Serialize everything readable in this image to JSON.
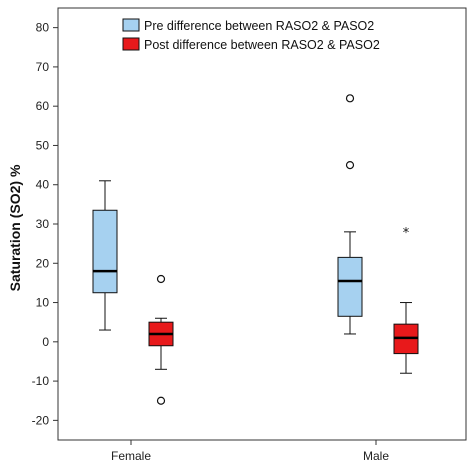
{
  "chart_data": {
    "type": "boxplot",
    "ylabel": "Saturation (SO2) %",
    "xlabel": "",
    "ylim": [
      -25,
      85
    ],
    "yticks": [
      80,
      70,
      60,
      50,
      40,
      30,
      20,
      10,
      0,
      -10,
      -20
    ],
    "categories": [
      "Female",
      "Male"
    ],
    "legend_placement": "top-center",
    "grid": false,
    "series": [
      {
        "name": "Pre difference between RASO2 & PASO2",
        "color": "#a6d1f0",
        "boxes": [
          {
            "category": "Female",
            "whisker_low": 3,
            "q1": 12.5,
            "median": 18,
            "q3": 33.5,
            "whisker_high": 41,
            "outliers": [],
            "extremes": []
          },
          {
            "category": "Male",
            "whisker_low": 2,
            "q1": 6.5,
            "median": 15.5,
            "q3": 21.5,
            "whisker_high": 28,
            "outliers": [
              45,
              62
            ],
            "extremes": []
          }
        ]
      },
      {
        "name": "Post difference between RASO2 & PASO2",
        "color": "#e8191b",
        "boxes": [
          {
            "category": "Female",
            "whisker_low": -7,
            "q1": -1,
            "median": 2,
            "q3": 5,
            "whisker_high": 6,
            "outliers": [
              16,
              -15
            ],
            "extremes": []
          },
          {
            "category": "Male",
            "whisker_low": -8,
            "q1": -3,
            "median": 1,
            "q3": 4.5,
            "whisker_high": 10,
            "outliers": [],
            "extremes": [
              28
            ]
          }
        ]
      }
    ]
  }
}
